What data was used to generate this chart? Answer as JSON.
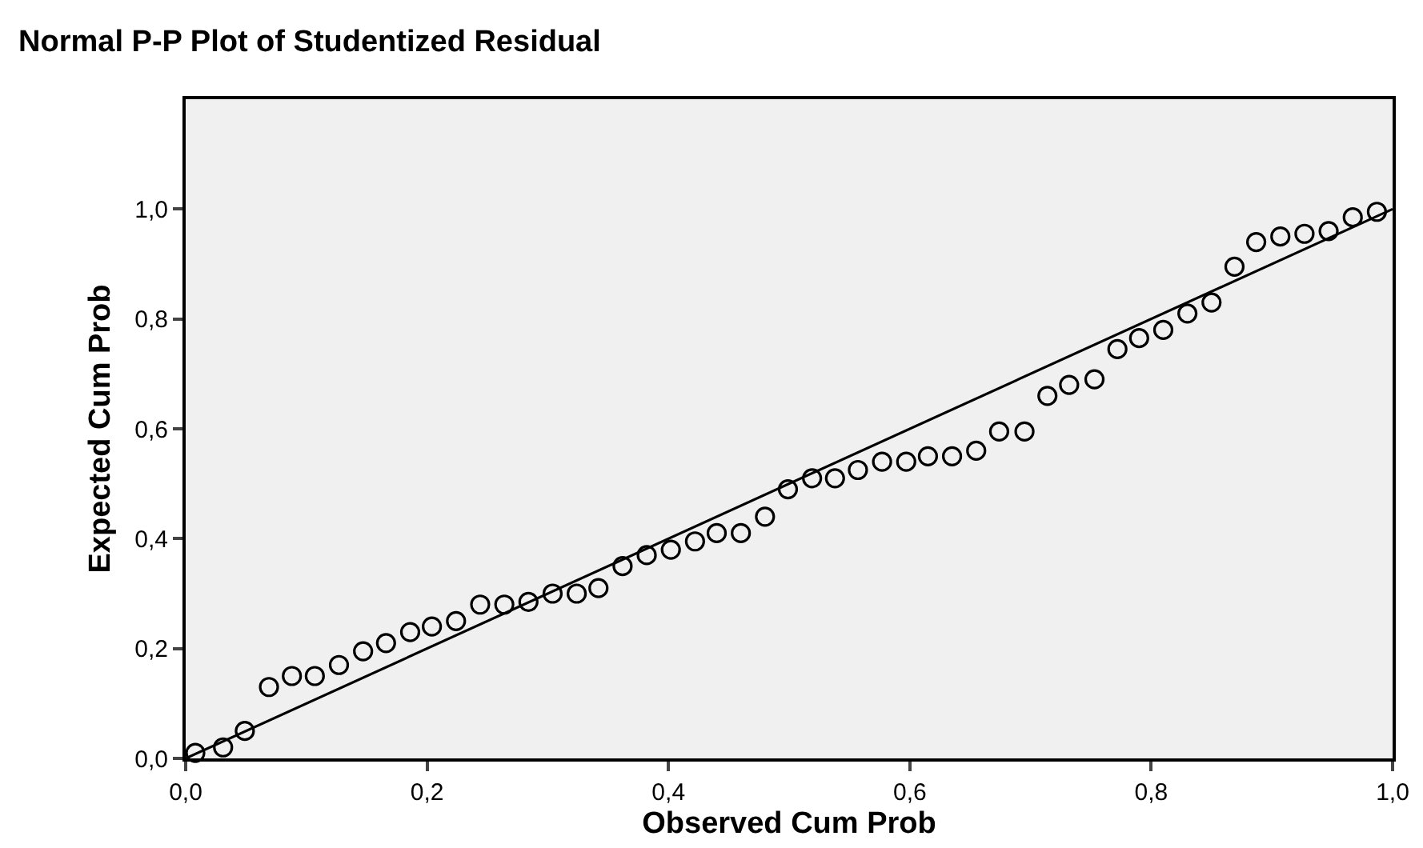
{
  "chart_data": {
    "type": "scatter",
    "title": "Normal P-P Plot of Studentized Residual",
    "xlabel": "Observed Cum Prob",
    "ylabel": "Expected Cum Prob",
    "xlim": [
      0,
      1
    ],
    "ylim": [
      0,
      1.2
    ],
    "xticks": [
      {
        "value": 0,
        "label": "0,0"
      },
      {
        "value": 0.2,
        "label": "0,2"
      },
      {
        "value": 0.4,
        "label": "0,4"
      },
      {
        "value": 0.6,
        "label": "0,6"
      },
      {
        "value": 0.8,
        "label": "0,8"
      },
      {
        "value": 1,
        "label": "1,0"
      }
    ],
    "yticks": [
      {
        "value": 0,
        "label": "0,0"
      },
      {
        "value": 0.2,
        "label": "0,2"
      },
      {
        "value": 0.4,
        "label": "0,4"
      },
      {
        "value": 0.6,
        "label": "0,6"
      },
      {
        "value": 0.8,
        "label": "0,8"
      },
      {
        "value": 1,
        "label": "1,0"
      }
    ],
    "grid": false,
    "series": [
      {
        "marker": "circle",
        "color": "#000000",
        "x": [
          0.008,
          0.031,
          0.049,
          0.069,
          0.088,
          0.107,
          0.127,
          0.147,
          0.166,
          0.186,
          0.204,
          0.224,
          0.244,
          0.264,
          0.284,
          0.304,
          0.324,
          0.342,
          0.362,
          0.382,
          0.402,
          0.422,
          0.44,
          0.46,
          0.48,
          0.499,
          0.519,
          0.538,
          0.557,
          0.577,
          0.597,
          0.615,
          0.635,
          0.655,
          0.674,
          0.695,
          0.714,
          0.732,
          0.753,
          0.772,
          0.79,
          0.81,
          0.83,
          0.85,
          0.869,
          0.887,
          0.907,
          0.927,
          0.947,
          0.967,
          0.987
        ],
        "values": [
          0.01,
          0.02,
          0.05,
          0.13,
          0.15,
          0.15,
          0.17,
          0.195,
          0.21,
          0.23,
          0.24,
          0.25,
          0.28,
          0.28,
          0.285,
          0.3,
          0.3,
          0.31,
          0.35,
          0.37,
          0.38,
          0.395,
          0.41,
          0.41,
          0.44,
          0.49,
          0.51,
          0.51,
          0.525,
          0.54,
          0.54,
          0.55,
          0.55,
          0.56,
          0.595,
          0.595,
          0.66,
          0.68,
          0.69,
          0.745,
          0.765,
          0.78,
          0.81,
          0.83,
          0.895,
          0.94,
          0.95,
          0.955,
          0.96,
          0.985,
          0.995
        ]
      },
      {
        "type": "line",
        "marker": "none",
        "line_style": "solid",
        "color": "#000000",
        "x": [
          0,
          1
        ],
        "values": [
          0,
          1
        ]
      }
    ]
  }
}
